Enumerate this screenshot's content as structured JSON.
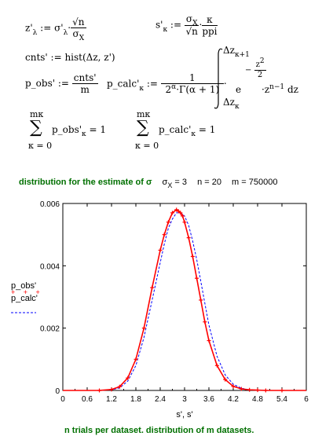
{
  "equations": {
    "zl_lhs": "z'",
    "zl_sub": "λ",
    "zl_assign": ":= σ'",
    "zl_sub2": "λ",
    "zl_num": "√n",
    "zl_den": "σ",
    "zl_den_sub": "X",
    "sk_lhs": "s'",
    "sk_sub": "κ",
    "sk_assign": ":=",
    "sk_num": "σ",
    "sk_num_sub": "X",
    "sk_den": "√n",
    "sk_num2": "κ",
    "sk_den2": "ppi",
    "cnts": "cnts' := hist(Δz, z')",
    "pobs_lhs": "p_obs' :=",
    "pobs_num": "cnts'",
    "pobs_den": "m",
    "pcalc_lhs": "p_calc'",
    "pcalc_sub": "κ",
    "pcalc_assign": ":=",
    "pcalc_num": "1",
    "pcalc_den": "2",
    "pcalc_den_sup": "α",
    "pcalc_den_rest": "·Γ(α + 1)",
    "int_upper": "Δz",
    "int_upper_sub": "κ+1",
    "int_lower": "Δz",
    "int_lower_sub": "κ",
    "int_e": "e",
    "int_exp_num": "z",
    "int_exp_num_sup": "2",
    "int_exp_den": "2",
    "int_exp_minus": "−",
    "int_z": "·z",
    "int_z_sup": "n−1",
    "int_dz": "dz",
    "sum1_top": "mκ",
    "sum1_body": "p_obs'",
    "sum1_sub": "κ",
    "sum1_eq": " = 1",
    "sum1_bottom": "κ = 0",
    "sum2_top": "mκ",
    "sum2_body": "p_calc'",
    "sum2_sub": "κ",
    "sum2_eq": " = 1",
    "sum2_bottom": "κ = 0"
  },
  "caption_top": {
    "text": "distribution for the estimate of σ",
    "sigma_label": "σ",
    "sigma_sub": "X",
    "sigma_val": " = 3",
    "n": "n = 20",
    "m": "m = 750000"
  },
  "caption_bottom": "n trials per dataset. distribution of m datasets.",
  "colors": {
    "obs": "#ff0000",
    "calc": "#0000ff",
    "caption": "#007000"
  },
  "chart_data": {
    "type": "line",
    "xlabel": "s', s'",
    "xlim": [
      0,
      6
    ],
    "ylim": [
      0,
      0.006
    ],
    "x_ticks": [
      "0",
      "0.6",
      "1.2",
      "1.8",
      "2.4",
      "3",
      "3.6",
      "4.2",
      "4.8",
      "5.4",
      "6"
    ],
    "y_ticks": [
      "0",
      "0.002",
      "0.004",
      "0.006"
    ],
    "legend_placement": "left",
    "series": [
      {
        "name": "p_obs'",
        "style": "points",
        "color": "#ff0000",
        "x": [
          0.9,
          1.2,
          1.4,
          1.6,
          1.8,
          2.0,
          2.2,
          2.4,
          2.5,
          2.6,
          2.7,
          2.8,
          2.85,
          2.9,
          2.95,
          3.0,
          3.1,
          3.2,
          3.3,
          3.4,
          3.5,
          3.6,
          3.8,
          4.0,
          4.2,
          4.4,
          4.6,
          4.8,
          5.0,
          5.4
        ],
        "y": [
          0.0,
          3e-05,
          0.00012,
          0.0004,
          0.001,
          0.002,
          0.0033,
          0.0045,
          0.005,
          0.0054,
          0.0057,
          0.0058,
          0.00575,
          0.0057,
          0.0056,
          0.0054,
          0.0049,
          0.0043,
          0.0036,
          0.0029,
          0.0022,
          0.0016,
          0.0008,
          0.00035,
          0.00013,
          5e-05,
          2e-05,
          1e-05,
          0.0,
          0.0
        ]
      },
      {
        "name": "p_calc'",
        "style": "dashed",
        "color": "#0000ff",
        "x": [
          0.9,
          1.2,
          1.4,
          1.6,
          1.8,
          2.0,
          2.2,
          2.4,
          2.5,
          2.6,
          2.7,
          2.8,
          2.9,
          3.0,
          3.1,
          3.2,
          3.3,
          3.4,
          3.5,
          3.6,
          3.8,
          4.0,
          4.2,
          4.4,
          4.6,
          4.8,
          5.0,
          5.4
        ],
        "y": [
          0.0,
          2e-05,
          8e-05,
          0.0003,
          0.0008,
          0.0017,
          0.0029,
          0.0041,
          0.0047,
          0.0052,
          0.0055,
          0.0057,
          0.0057,
          0.0056,
          0.0053,
          0.0048,
          0.0042,
          0.0035,
          0.0028,
          0.0021,
          0.0011,
          0.0005,
          0.0002,
          7e-05,
          2e-05,
          1e-05,
          0.0,
          0.0
        ]
      }
    ]
  }
}
